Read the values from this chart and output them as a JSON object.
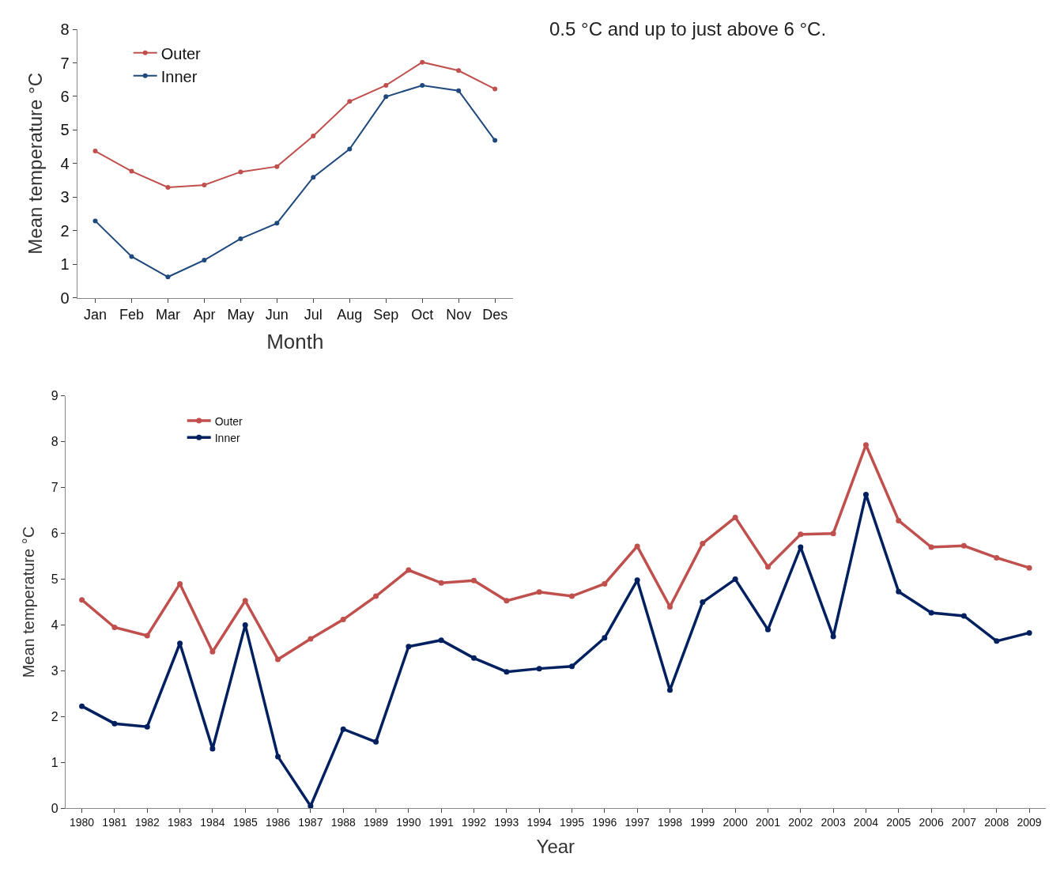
{
  "chart_data": [
    {
      "type": "line",
      "xlabel": "Month",
      "ylabel": "Mean temperature °C",
      "categories": [
        "Jan",
        "Feb",
        "Mar",
        "Apr",
        "May",
        "Jun",
        "Jul",
        "Aug",
        "Sep",
        "Oct",
        "Nov",
        "Des"
      ],
      "series": [
        {
          "name": "Outer",
          "color": "#c0504d",
          "values": [
            4.37,
            3.77,
            3.29,
            3.36,
            3.75,
            3.91,
            4.82,
            5.85,
            6.33,
            7.02,
            6.77,
            6.22
          ]
        },
        {
          "name": "Inner",
          "color": "#1f497d",
          "values": [
            2.29,
            1.23,
            0.62,
            1.12,
            1.76,
            2.22,
            3.59,
            4.43,
            5.99,
            6.33,
            6.17,
            4.69
          ]
        }
      ],
      "ylim": [
        0,
        8
      ],
      "yticks": [
        0,
        1,
        2,
        3,
        4,
        5,
        6,
        7,
        8
      ],
      "legend": "top left",
      "marker": "circle",
      "line_style": "solid",
      "annotations": [
        "0.5 °C and up to just above 6 °C."
      ]
    },
    {
      "type": "line",
      "xlabel": "Year",
      "ylabel": "Mean temperature °C",
      "categories": [
        "1980",
        "1981",
        "1982",
        "1983",
        "1984",
        "1985",
        "1986",
        "1987",
        "1988",
        "1989",
        "1990",
        "1991",
        "1992",
        "1993",
        "1994",
        "1995",
        "1996",
        "1997",
        "1998",
        "1999",
        "2000",
        "2001",
        "2002",
        "2003",
        "2004",
        "2005",
        "2006",
        "2007",
        "2008",
        "2009"
      ],
      "series": [
        {
          "name": "Outer",
          "color": "#c0504d",
          "values": [
            4.55,
            3.95,
            3.77,
            4.9,
            3.42,
            4.53,
            3.25,
            3.7,
            4.12,
            4.63,
            5.2,
            4.92,
            4.97,
            4.53,
            4.72,
            4.63,
            4.9,
            5.72,
            4.4,
            5.78,
            6.35,
            5.27,
            5.98,
            6.0,
            7.93,
            6.28,
            5.7,
            5.73,
            5.47,
            5.25
          ]
        },
        {
          "name": "Inner",
          "color": "#002060",
          "values": [
            2.23,
            1.85,
            1.78,
            3.6,
            1.3,
            4.0,
            1.13,
            0.05,
            1.73,
            1.45,
            3.53,
            3.67,
            3.28,
            2.98,
            3.05,
            3.1,
            3.72,
            4.98,
            2.58,
            4.5,
            5.0,
            3.9,
            5.7,
            3.75,
            6.85,
            4.73,
            4.27,
            4.2,
            3.65,
            3.83
          ]
        }
      ],
      "ylim": [
        0,
        9
      ],
      "yticks": [
        0,
        1,
        2,
        3,
        4,
        5,
        6,
        7,
        8,
        9
      ],
      "legend": "top left",
      "marker": "circle",
      "line_style": "solid"
    }
  ]
}
